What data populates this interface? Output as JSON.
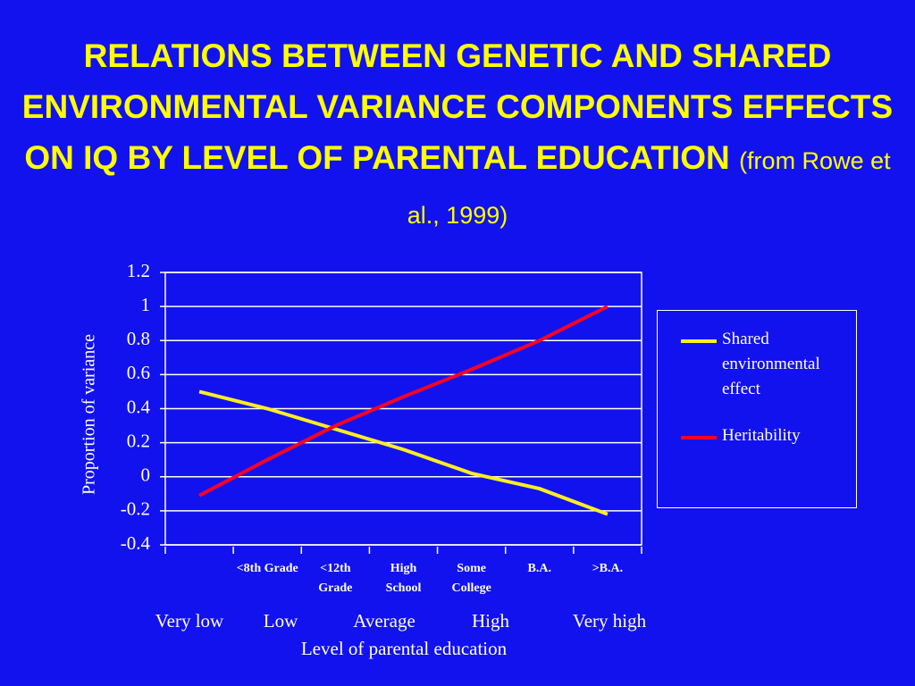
{
  "chart_data": {
    "type": "line",
    "title": "RELATIONS BETWEEN GENETIC AND SHARED ENVIRONMENTAL VARIANCE COMPONENTS EFFECTS ON IQ BY LEVEL OF PARENTAL EDUCATION",
    "subtitle": "(from Rowe et al., 1999)",
    "ylabel": "Proportion of variance",
    "xlabel": "Level of parental education",
    "x_groups": [
      "Very low",
      "Low",
      "Average",
      "High",
      "Very high"
    ],
    "categories": [
      null,
      "<8th Grade",
      "<12th Grade",
      "High School",
      "Some College",
      "B.A.",
      ">B.A."
    ],
    "series": [
      {
        "name": "Shared environmental effect",
        "color": "#ffee22",
        "values": [
          0.5,
          0.4,
          0.28,
          0.16,
          0.02,
          -0.07,
          -0.22
        ]
      },
      {
        "name": "Heritability",
        "color": "#ff0022",
        "values": [
          -0.11,
          0.1,
          0.3,
          0.47,
          0.63,
          0.8,
          1.0
        ]
      }
    ],
    "ylim": [
      -0.4,
      1.2
    ],
    "yticks": [
      -0.4,
      -0.2,
      0,
      0.2,
      0.4,
      0.6,
      0.8,
      1,
      1.2
    ],
    "grid": true,
    "legend": "right"
  }
}
